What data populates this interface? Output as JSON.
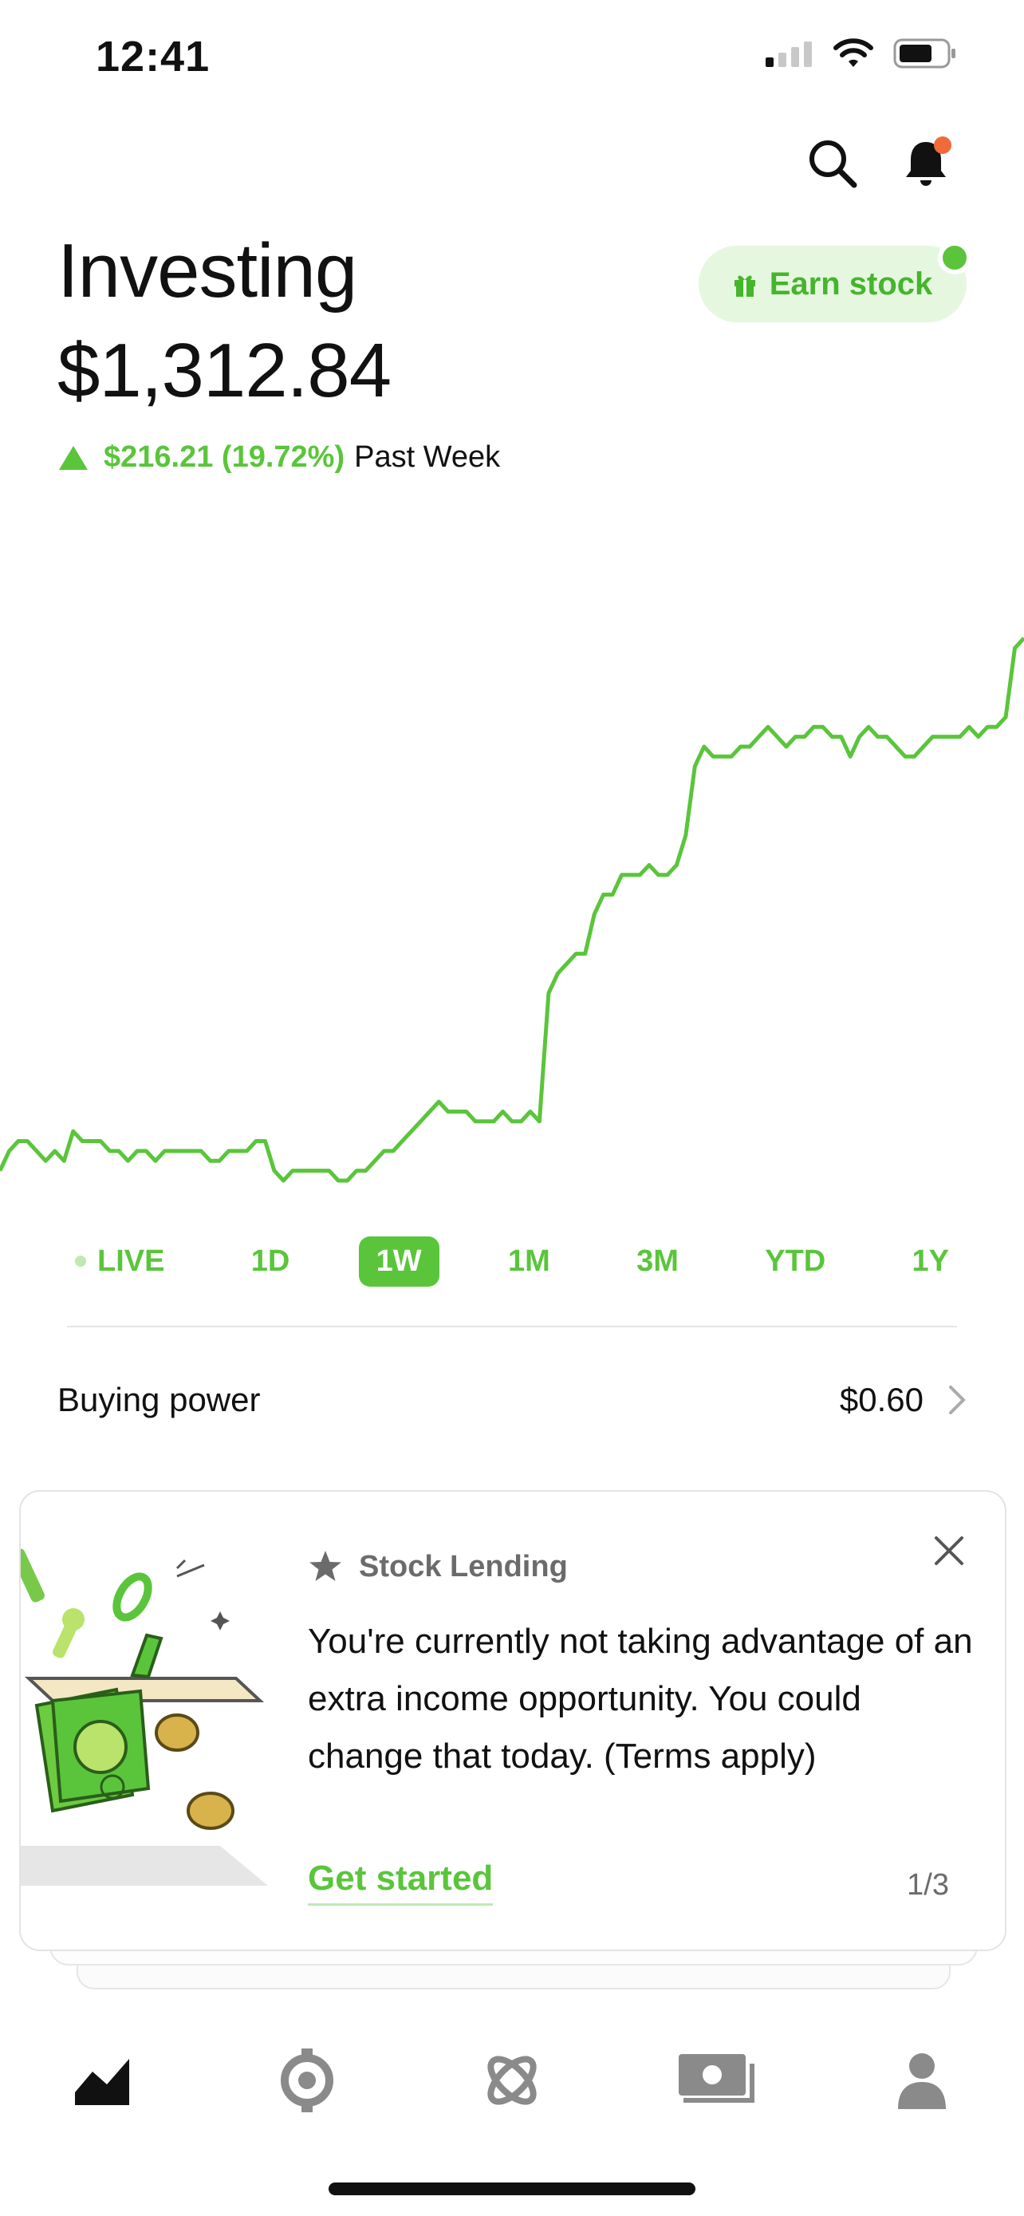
{
  "status_bar": {
    "time": "12:41"
  },
  "header": {
    "title": "Investing",
    "value": "$1,312.84"
  },
  "change": {
    "amount": "$216.21 (19.72%)",
    "period": "Past Week"
  },
  "earn_button": {
    "label": "Earn stock"
  },
  "colors": {
    "accent": "#5AC53B",
    "accent_light": "#E6F7E0",
    "notification": "#F06B3A"
  },
  "ranges": [
    "LIVE",
    "1D",
    "1W",
    "1M",
    "3M",
    "YTD",
    "1Y"
  ],
  "active_range": "1W",
  "buying_power": {
    "label": "Buying power",
    "value": "$0.60"
  },
  "card": {
    "category": "Stock Lending",
    "body": "You're currently not taking advantage of an extra income opportunity. You could change that today. (Terms apply)",
    "cta": "Get started",
    "page": "1/3"
  },
  "nav": {
    "items": [
      "chart-icon",
      "crypto-icon",
      "browse-icon",
      "cash-icon",
      "account-icon"
    ]
  },
  "chart_data": {
    "type": "line",
    "series": [
      {
        "values": [
          1.6,
          1.8,
          1.9,
          1.9,
          1.8,
          1.7,
          1.8,
          1.7,
          2.0,
          1.9,
          1.9,
          1.9,
          1.8,
          1.8,
          1.7,
          1.8,
          1.8,
          1.7,
          1.8,
          1.8,
          1.8,
          1.8,
          1.8,
          1.7,
          1.7,
          1.8,
          1.8,
          1.8,
          1.9,
          1.9,
          1.6,
          1.5,
          1.6,
          1.6,
          1.6,
          1.6,
          1.6,
          1.5,
          1.5,
          1.6,
          1.6,
          1.7,
          1.8,
          1.8,
          1.9,
          2.0,
          2.1,
          2.2,
          2.3,
          2.2,
          2.2,
          2.2,
          2.1,
          2.1,
          2.1,
          2.2,
          2.1,
          2.1,
          2.2,
          2.1,
          3.4,
          3.6,
          3.7,
          3.8,
          3.8,
          4.2,
          4.4,
          4.4,
          4.6,
          4.6,
          4.6,
          4.7,
          4.6,
          4.6,
          4.7,
          5.0,
          5.7,
          5.9,
          5.8,
          5.8,
          5.8,
          5.9,
          5.9,
          6.0,
          6.1,
          6.0,
          5.9,
          6.0,
          6.0,
          6.1,
          6.1,
          6.0,
          6.0,
          5.8,
          6.0,
          6.1,
          6.0,
          6.0,
          5.9,
          5.8,
          5.8,
          5.9,
          6.0,
          6.0,
          6.0,
          6.0,
          6.1,
          6.0,
          6.1,
          6.1,
          6.2,
          6.9,
          7.0
        ]
      }
    ]
  }
}
